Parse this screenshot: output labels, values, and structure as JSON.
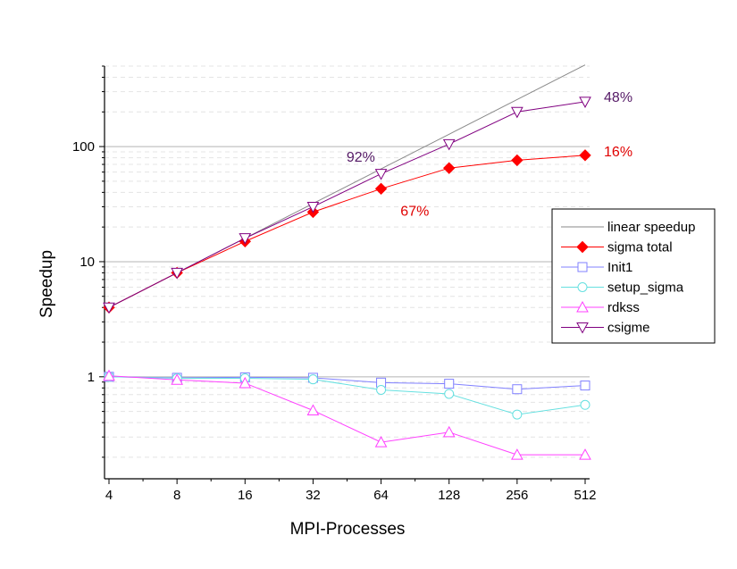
{
  "chart_data": {
    "type": "line",
    "xlabel": "MPI-Processes",
    "ylabel": "Speedup",
    "x_scale": "log2",
    "y_scale": "log10",
    "x_ticks": [
      4,
      8,
      16,
      32,
      64,
      128,
      256,
      512
    ],
    "y_ticks": [
      1,
      10,
      100
    ],
    "xlim": [
      4,
      512
    ],
    "ylim": [
      0.13,
      500
    ],
    "grid": "horizontal",
    "legend_position": "right",
    "series": [
      {
        "name": "linear speedup",
        "marker": "none",
        "color": "#8a8a8a",
        "x": [
          4,
          8,
          16,
          32,
          64,
          128,
          256,
          512
        ],
        "values": [
          4,
          8,
          16,
          32,
          64,
          128,
          256,
          512
        ]
      },
      {
        "name": "sigma total",
        "marker": "diamond-filled",
        "color": "#ff0000",
        "x": [
          4,
          8,
          16,
          32,
          64,
          128,
          256,
          512
        ],
        "values": [
          4,
          8,
          15,
          27,
          43,
          65,
          76,
          84
        ]
      },
      {
        "name": "Init1",
        "marker": "square-open",
        "color": "#8080ff",
        "x": [
          4,
          8,
          16,
          32,
          64,
          128,
          256,
          512
        ],
        "values": [
          1.0,
          0.98,
          0.99,
          0.98,
          0.89,
          0.87,
          0.78,
          0.84
        ]
      },
      {
        "name": "setup_sigma",
        "marker": "circle-open",
        "color": "#66e0e0",
        "x": [
          4,
          8,
          16,
          32,
          64,
          128,
          256,
          512
        ],
        "values": [
          1.0,
          0.97,
          0.97,
          0.95,
          0.77,
          0.71,
          0.47,
          0.57
        ]
      },
      {
        "name": "rdkss",
        "marker": "triangle-up-open",
        "color": "#ff40ff",
        "x": [
          4,
          8,
          16,
          32,
          64,
          128,
          256,
          512
        ],
        "values": [
          1.02,
          0.94,
          0.88,
          0.51,
          0.27,
          0.33,
          0.21,
          0.21
        ]
      },
      {
        "name": "csigme",
        "marker": "triangle-down-open",
        "color": "#800080",
        "x": [
          4,
          8,
          16,
          32,
          64,
          128,
          256,
          512
        ],
        "values": [
          4,
          8,
          16,
          30,
          58,
          105,
          200,
          245
        ]
      }
    ],
    "annotations": [
      {
        "text": "92%",
        "x": 45,
        "y": 74,
        "color": "#551a66"
      },
      {
        "text": "67%",
        "x": 78,
        "y": 25,
        "color": "#e00000"
      },
      {
        "text": "48%",
        "x": 620,
        "y": 244,
        "color": "#551a66"
      },
      {
        "text": "16%",
        "x": 620,
        "y": 82,
        "color": "#e00000"
      }
    ]
  }
}
